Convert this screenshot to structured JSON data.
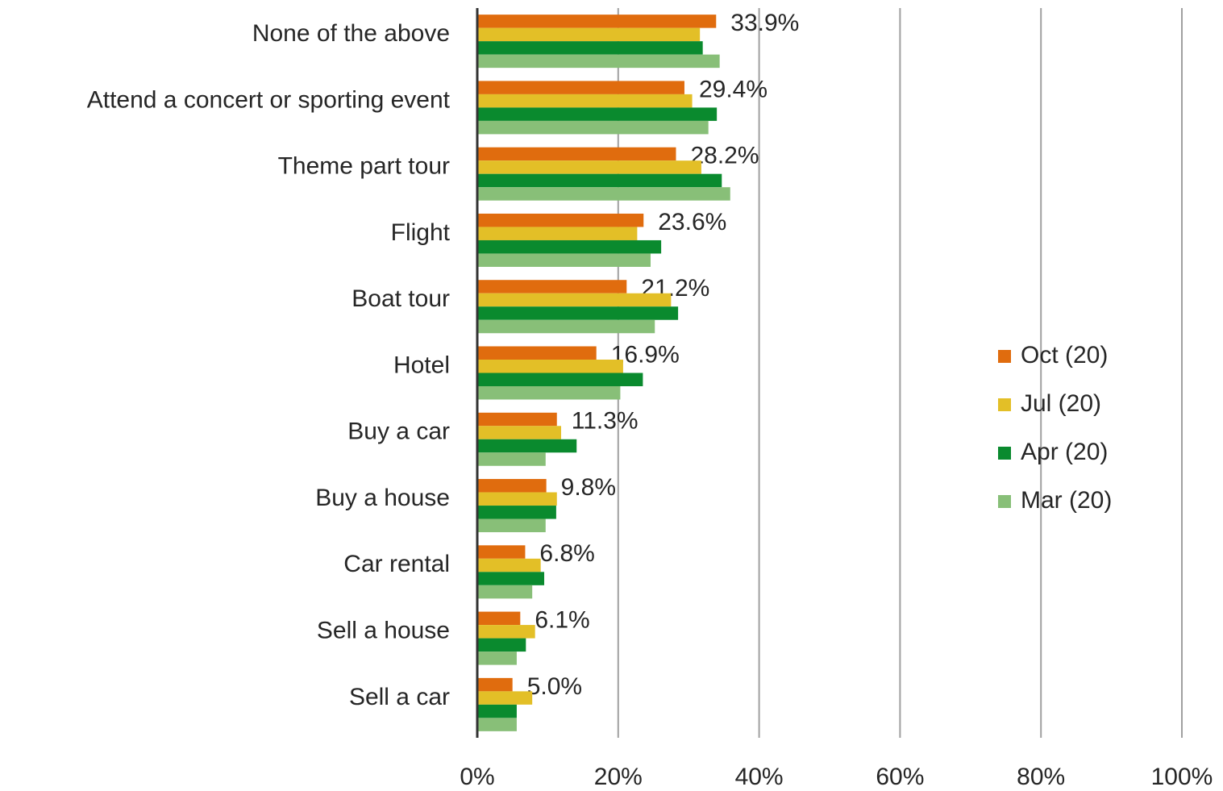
{
  "chart_data": {
    "type": "bar",
    "orientation": "horizontal",
    "categories": [
      "None of the above",
      "Attend a concert or sporting event",
      "Theme part tour",
      "Flight",
      "Boat tour",
      "Hotel",
      "Buy a car",
      "Buy a house",
      "Car rental",
      "Sell a house",
      "Sell a car"
    ],
    "series": [
      {
        "name": "Oct (20)",
        "color": "#e06c0e",
        "values": [
          33.9,
          29.4,
          28.2,
          23.6,
          21.2,
          16.9,
          11.3,
          9.8,
          6.8,
          6.1,
          5.0
        ],
        "value_labels": [
          "33.9%",
          "29.4%",
          "28.2%",
          "23.6%",
          "21.2%",
          "16.9%",
          "11.3%",
          "9.8%",
          "6.8%",
          "6.1%",
          "5.0%"
        ]
      },
      {
        "name": "Jul (20)",
        "color": "#e3bf27",
        "values": [
          31.6,
          30.5,
          31.8,
          22.7,
          27.5,
          20.7,
          11.9,
          11.3,
          9.0,
          8.2,
          7.8
        ]
      },
      {
        "name": "Apr (20)",
        "color": "#0a8a2e",
        "values": [
          32.0,
          34.0,
          34.7,
          26.1,
          28.5,
          23.5,
          14.1,
          11.2,
          9.5,
          6.9,
          5.6
        ]
      },
      {
        "name": "Mar (20)",
        "color": "#88bf78",
        "values": [
          34.4,
          32.8,
          35.9,
          24.6,
          25.2,
          20.3,
          9.7,
          9.7,
          7.8,
          5.6,
          5.6
        ]
      }
    ],
    "xlim": [
      0,
      100
    ],
    "xticks": [
      {
        "value": 0,
        "label": "0%"
      },
      {
        "value": 20,
        "label": "20%"
      },
      {
        "value": 40,
        "label": "40%"
      },
      {
        "value": 60,
        "label": "60%"
      },
      {
        "value": 80,
        "label": "80%"
      },
      {
        "value": 100,
        "label": "100%"
      }
    ],
    "grid": true,
    "legend": "right"
  }
}
